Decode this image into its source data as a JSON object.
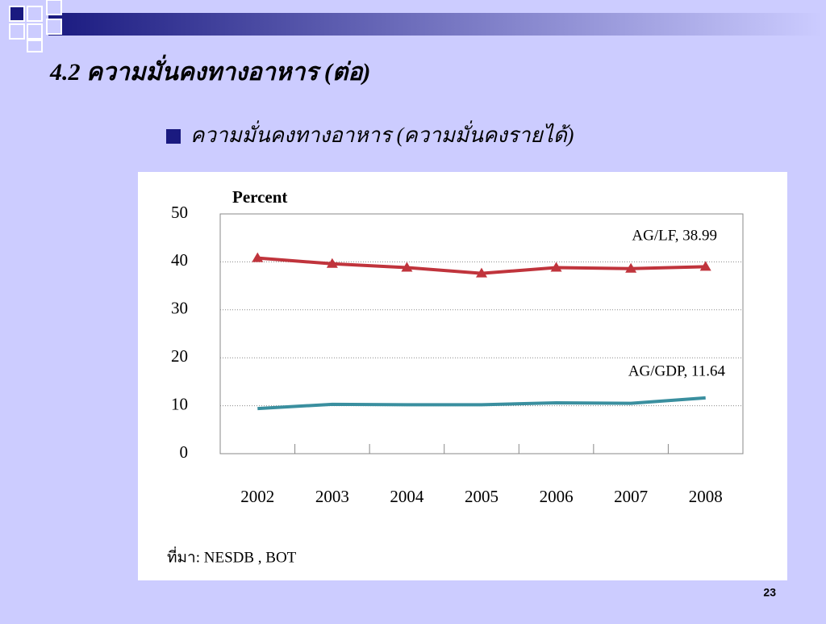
{
  "slide": {
    "title": "4.2 ความมั่นคงทางอาหาร (ต่อ)",
    "bullet": "ความมั่นคงทางอาหาร (ความมั่นคงรายได้)",
    "source": "ที่มา: NESDB ,  BOT",
    "page_number": "23"
  },
  "chart_data": {
    "type": "line",
    "y_label": "Percent",
    "categories": [
      "2002",
      "2003",
      "2004",
      "2005",
      "2006",
      "2007",
      "2008"
    ],
    "series": [
      {
        "name": "AG/LF",
        "color": "#c0343c",
        "marker": "triangle",
        "values": [
          40.8,
          39.6,
          38.8,
          37.6,
          38.8,
          38.6,
          38.99
        ]
      },
      {
        "name": "AG/GDP",
        "color": "#3a8f9f",
        "marker": "none",
        "values": [
          9.4,
          10.3,
          10.2,
          10.2,
          10.6,
          10.5,
          11.64
        ]
      }
    ],
    "annotations": [
      {
        "text": "AG/LF, 38.99"
      },
      {
        "text": "AG/GDP, 11.64"
      }
    ],
    "ylim": [
      0,
      50
    ],
    "yticks": [
      0,
      10,
      20,
      30,
      40,
      50
    ],
    "grid": true
  }
}
